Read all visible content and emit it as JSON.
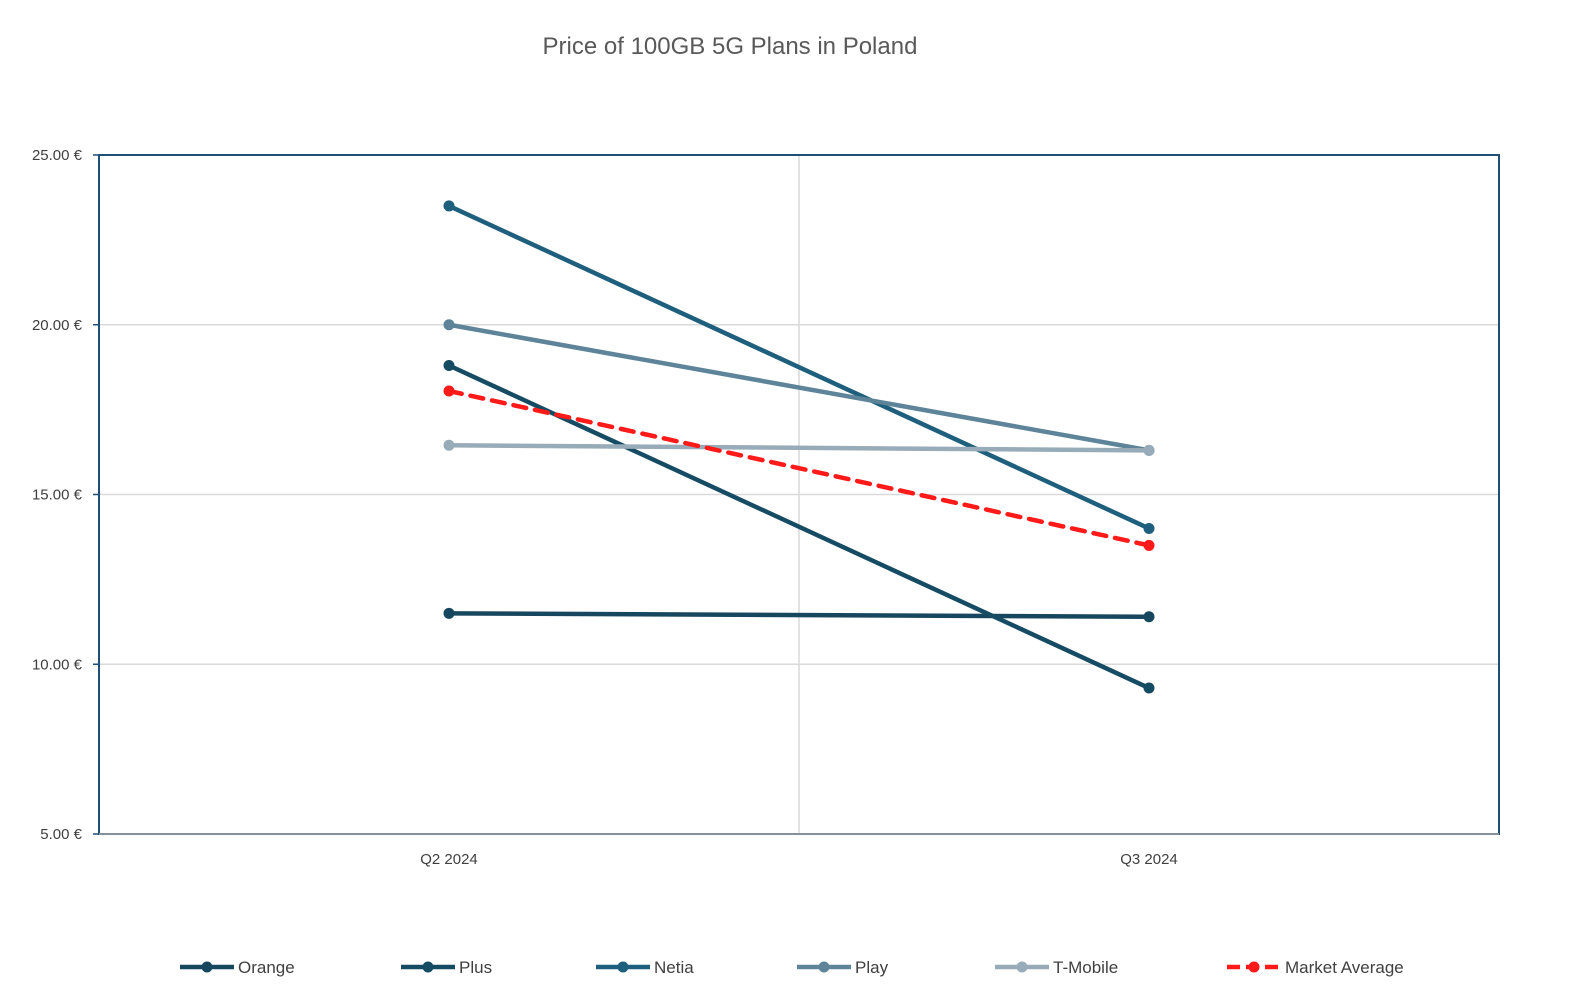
{
  "chart_data": {
    "type": "line",
    "title": "Price of 100GB 5G Plans in Poland",
    "xlabel": "",
    "ylabel": "",
    "categories": [
      "Q2 2024",
      "Q3 2024"
    ],
    "y_ticks": [
      "5.00 €",
      "10.00 €",
      "15.00 €",
      "20.00 €",
      "25.00 €"
    ],
    "ylim": [
      5,
      25
    ],
    "grid": true,
    "legend_position": "bottom",
    "series": [
      {
        "name": "Orange",
        "values": [
          11.5,
          11.4
        ],
        "color": "#17475e",
        "dashed": false
      },
      {
        "name": "Plus",
        "values": [
          18.8,
          9.3
        ],
        "color": "#164b64",
        "dashed": false
      },
      {
        "name": "Netia",
        "values": [
          23.5,
          14.0
        ],
        "color": "#1f5f7e",
        "dashed": false
      },
      {
        "name": "Play",
        "values": [
          20.0,
          16.3
        ],
        "color": "#5d8499",
        "dashed": false
      },
      {
        "name": "T-Mobile",
        "values": [
          16.45,
          16.3
        ],
        "color": "#98abb8",
        "dashed": false
      },
      {
        "name": "Market Average",
        "values": [
          18.05,
          13.5
        ],
        "color": "#ff1a1a",
        "dashed": true
      }
    ]
  }
}
